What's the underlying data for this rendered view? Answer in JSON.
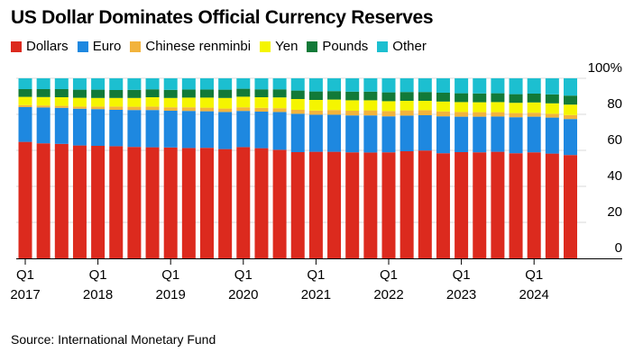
{
  "header": {
    "title": "US Dollar Dominates Official Currency Reserves"
  },
  "legend": [
    {
      "label": "Dollars",
      "color": "#dc2a1e"
    },
    {
      "label": "Euro",
      "color": "#1e88e0"
    },
    {
      "label": "Chinese renminbi",
      "color": "#f2b33c"
    },
    {
      "label": "Yen",
      "color": "#f5f500"
    },
    {
      "label": "Pounds",
      "color": "#127a38"
    },
    {
      "label": "Other",
      "color": "#1cbfd0"
    }
  ],
  "footer": {
    "source": "Source: International Monetary Fund"
  },
  "chart_data": {
    "type": "bar",
    "stacked": true,
    "title": "US Dollar Dominates Official Currency Reserves",
    "ylabel": "",
    "ylim": [
      0,
      100
    ],
    "y_ticks": [
      "0",
      "20",
      "40",
      "60",
      "80",
      "100%"
    ],
    "y_axis_position": "right",
    "x_tick_labels": [
      {
        "index": 0,
        "top": "Q1",
        "bottom": "2017"
      },
      {
        "index": 4,
        "top": "Q1",
        "bottom": "2018"
      },
      {
        "index": 8,
        "top": "Q1",
        "bottom": "2019"
      },
      {
        "index": 12,
        "top": "Q1",
        "bottom": "2020"
      },
      {
        "index": 16,
        "top": "Q1",
        "bottom": "2021"
      },
      {
        "index": 20,
        "top": "Q1",
        "bottom": "2022"
      },
      {
        "index": 24,
        "top": "Q1",
        "bottom": "2023"
      },
      {
        "index": 28,
        "top": "Q1",
        "bottom": "2024"
      }
    ],
    "categories": [
      "Q1 2017",
      "Q2 2017",
      "Q3 2017",
      "Q4 2017",
      "Q1 2018",
      "Q2 2018",
      "Q3 2018",
      "Q4 2018",
      "Q1 2019",
      "Q2 2019",
      "Q3 2019",
      "Q4 2019",
      "Q1 2020",
      "Q2 2020",
      "Q3 2020",
      "Q4 2020",
      "Q1 2021",
      "Q2 2021",
      "Q3 2021",
      "Q4 2021",
      "Q1 2022",
      "Q2 2022",
      "Q3 2022",
      "Q4 2022",
      "Q1 2023",
      "Q2 2023",
      "Q3 2023",
      "Q4 2023",
      "Q1 2024",
      "Q2 2024",
      "Q3 2024"
    ],
    "series": [
      {
        "name": "Dollars",
        "color": "#dc2a1e",
        "values": [
          64.7,
          63.9,
          63.6,
          62.7,
          62.5,
          62.3,
          61.9,
          61.7,
          61.6,
          61.3,
          61.4,
          60.7,
          61.8,
          61.2,
          60.3,
          59.0,
          59.2,
          59.2,
          58.9,
          58.8,
          58.9,
          59.5,
          59.9,
          58.4,
          59.0,
          58.9,
          59.2,
          58.4,
          58.9,
          58.2,
          57.4
        ]
      },
      {
        "name": "Euro",
        "color": "#1e88e0",
        "values": [
          19.3,
          19.9,
          20.0,
          20.4,
          20.4,
          20.2,
          20.5,
          20.7,
          20.4,
          20.6,
          20.3,
          20.6,
          20.1,
          20.3,
          21.0,
          21.3,
          20.6,
          20.6,
          20.5,
          20.6,
          20.0,
          19.8,
          19.6,
          20.5,
          19.7,
          19.8,
          19.6,
          20.0,
          19.8,
          20.0,
          20.0
        ]
      },
      {
        "name": "Chinese renminbi",
        "color": "#f2b33c",
        "values": [
          1.1,
          1.1,
          1.1,
          1.2,
          1.4,
          1.8,
          1.8,
          1.9,
          1.9,
          2.0,
          2.0,
          1.9,
          2.0,
          2.1,
          2.1,
          2.2,
          2.3,
          2.6,
          2.6,
          2.8,
          2.9,
          2.9,
          2.8,
          2.7,
          2.6,
          2.5,
          2.4,
          2.3,
          2.2,
          2.1,
          2.2
        ]
      },
      {
        "name": "Yen",
        "color": "#f5f500",
        "values": [
          4.6,
          4.7,
          4.8,
          4.9,
          4.8,
          4.8,
          4.9,
          5.2,
          5.2,
          5.4,
          5.6,
          5.9,
          5.9,
          5.9,
          6.0,
          6.0,
          5.9,
          5.8,
          5.8,
          5.6,
          5.5,
          5.3,
          5.2,
          5.5,
          5.5,
          5.5,
          5.6,
          5.7,
          5.7,
          5.8,
          5.8
        ]
      },
      {
        "name": "Pounds",
        "color": "#127a38",
        "values": [
          4.3,
          4.4,
          4.5,
          4.5,
          4.6,
          4.4,
          4.5,
          4.4,
          4.5,
          4.5,
          4.5,
          4.6,
          4.4,
          4.4,
          4.5,
          4.7,
          4.7,
          4.7,
          4.8,
          4.8,
          4.9,
          4.9,
          4.9,
          4.9,
          4.9,
          4.9,
          4.9,
          4.8,
          4.9,
          5.0,
          5.0
        ]
      },
      {
        "name": "Other",
        "color": "#1cbfd0",
        "values": [
          6.0,
          6.0,
          6.0,
          6.3,
          6.3,
          6.5,
          6.4,
          6.1,
          6.4,
          6.2,
          6.2,
          6.3,
          5.8,
          6.1,
          6.1,
          6.8,
          7.3,
          7.1,
          7.4,
          7.4,
          7.8,
          7.6,
          7.6,
          8.0,
          8.3,
          8.4,
          8.3,
          8.8,
          8.5,
          8.9,
          9.6
        ]
      }
    ]
  }
}
